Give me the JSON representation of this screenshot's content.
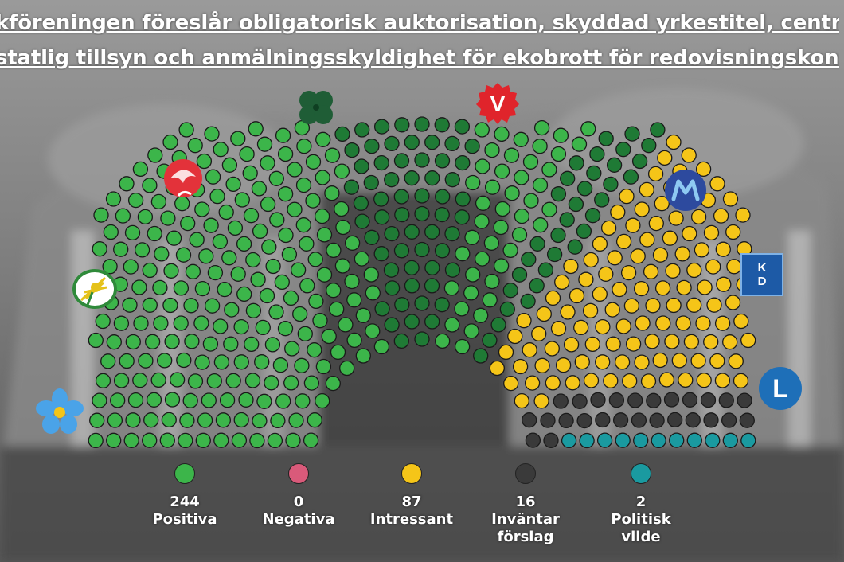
{
  "headline": {
    "line1": "kföreningen föreslår obligatorisk auktorisation, skyddad yrkestitel, centralt regi",
    "line2": "statlig tillsyn och anmälningsskyldighet för ekobrott för redovisningskonsulter"
  },
  "legend": [
    {
      "count": "244",
      "label": "Positiva",
      "color": "#3cb54a"
    },
    {
      "count": "0",
      "label": "Negativa",
      "color": "#d95a7a"
    },
    {
      "count": "87",
      "label": "Intressant",
      "color": "#f5c518"
    },
    {
      "count": "16",
      "label": "Inväntar förslag",
      "color": "#3a3a3a"
    },
    {
      "count": "2",
      "label": "Politisk vilde",
      "color": "#1a9aa0"
    }
  ],
  "seat_colors": {
    "light_green": "#3cb54a",
    "dark_green": "#1f7a35",
    "yellow": "#f5c518",
    "dark": "#3a3a3a",
    "teal": "#1a9aa0"
  },
  "party_logos": {
    "kd_letters": [
      "K",
      "D"
    ],
    "v_letter": "V",
    "l_letter": "L"
  }
}
